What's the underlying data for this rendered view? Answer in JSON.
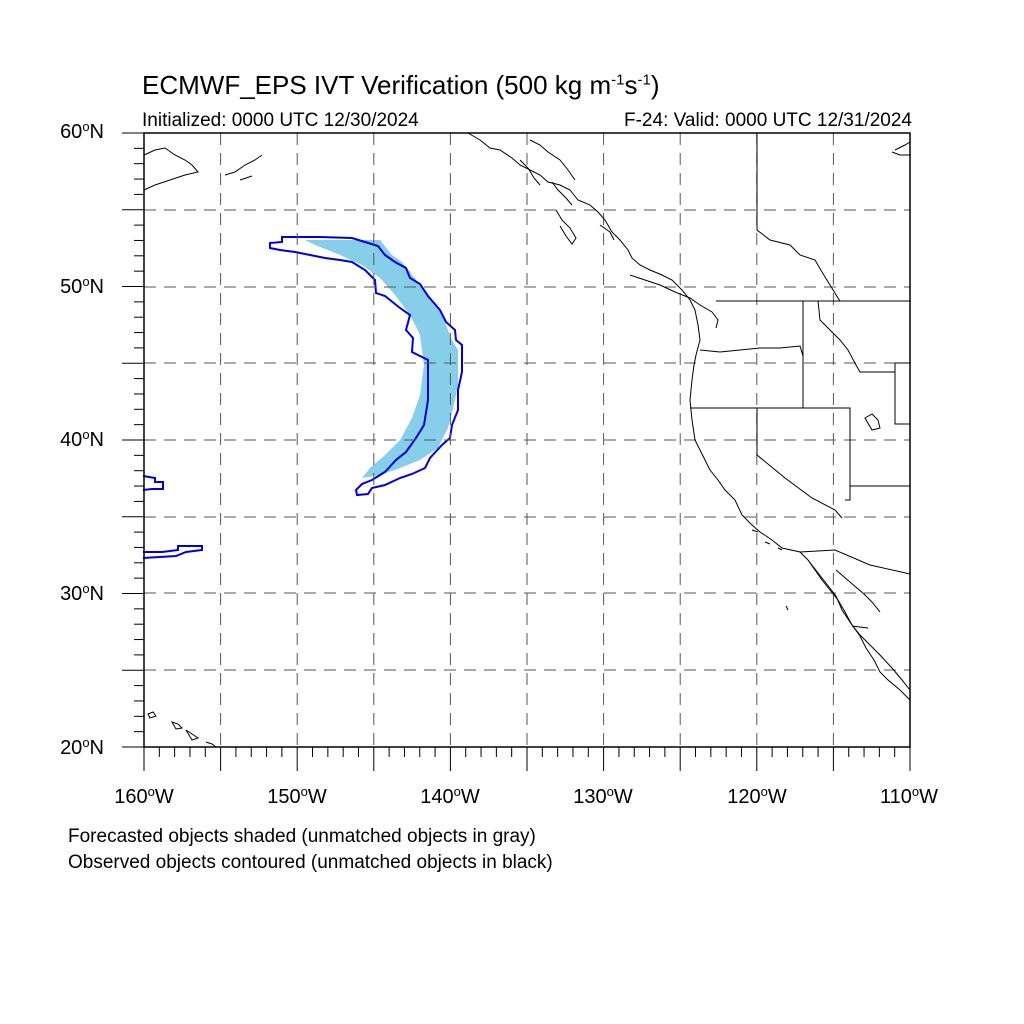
{
  "title": {
    "prefix": "ECMWF_EPS IVT Verification (500 kg m",
    "exp1": "-1",
    "mid": "s",
    "exp2": "-1",
    "suffix": ")"
  },
  "initialized": "Initialized: 0000 UTC 12/30/2024",
  "valid": "F-24: Valid: 0000 UTC 12/31/2024",
  "lat_labels": [
    {
      "num": "60",
      "hem": "N"
    },
    {
      "num": "50",
      "hem": "N"
    },
    {
      "num": "40",
      "hem": "N"
    },
    {
      "num": "30",
      "hem": "N"
    },
    {
      "num": "20",
      "hem": "N"
    }
  ],
  "lon_labels": [
    {
      "num": "160",
      "hem": "W"
    },
    {
      "num": "150",
      "hem": "W"
    },
    {
      "num": "140",
      "hem": "W"
    },
    {
      "num": "130",
      "hem": "W"
    },
    {
      "num": "120",
      "hem": "W"
    },
    {
      "num": "110",
      "hem": "W"
    }
  ],
  "notes": {
    "forecast": "Forecasted objects shaded (unmatched objects in gray)",
    "observed": "Observed objects contoured (unmatched objects in black)"
  },
  "colors": {
    "forecast_fill": "#87ceeb",
    "observed_contour": "#0000dd",
    "coastline": "#000000",
    "grid": "#555555"
  },
  "map_extent": {
    "lon_min": -160,
    "lon_max": -110,
    "lat_min": 20,
    "lat_max": 60
  }
}
